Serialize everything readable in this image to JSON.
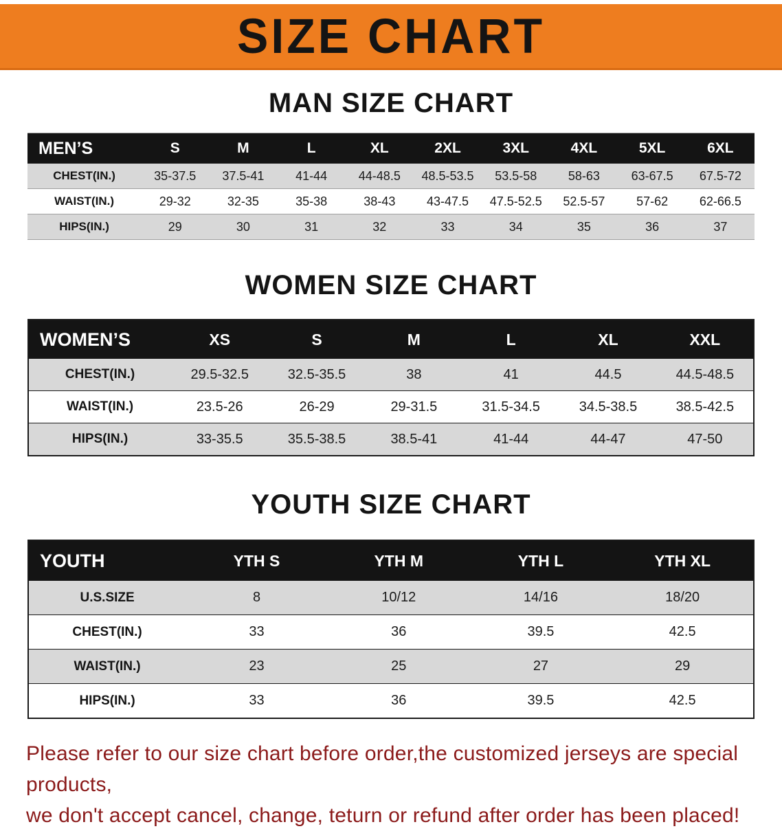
{
  "banner": {
    "title": "SIZE CHART"
  },
  "colors": {
    "banner_bg": "#ee7d1f",
    "header_bg": "#141414",
    "stripe": "#d8d8d8",
    "footer_text": "#8b1a1a"
  },
  "sections": [
    {
      "id": "men",
      "title": "MAN SIZE CHART",
      "header": [
        "MEN’S",
        "S",
        "M",
        "L",
        "XL",
        "2XL",
        "3XL",
        "4XL",
        "5XL",
        "6XL"
      ],
      "rows": [
        [
          "CHEST(IN.)",
          "35-37.5",
          "37.5-41",
          "41-44",
          "44-48.5",
          "48.5-53.5",
          "53.5-58",
          "58-63",
          "63-67.5",
          "67.5-72"
        ],
        [
          "WAIST(IN.)",
          "29-32",
          "32-35",
          "35-38",
          "38-43",
          "43-47.5",
          "47.5-52.5",
          "52.5-57",
          "57-62",
          "62-66.5"
        ],
        [
          "HIPS(IN.)",
          "29",
          "30",
          "31",
          "32",
          "33",
          "34",
          "35",
          "36",
          "37"
        ]
      ]
    },
    {
      "id": "women",
      "title": "WOMEN SIZE CHART",
      "header": [
        "WOMEN’S",
        "XS",
        "S",
        "M",
        "L",
        "XL",
        "XXL"
      ],
      "rows": [
        [
          "CHEST(IN.)",
          "29.5-32.5",
          "32.5-35.5",
          "38",
          "41",
          "44.5",
          "44.5-48.5"
        ],
        [
          "WAIST(IN.)",
          "23.5-26",
          "26-29",
          "29-31.5",
          "31.5-34.5",
          "34.5-38.5",
          "38.5-42.5"
        ],
        [
          "HIPS(IN.)",
          "33-35.5",
          "35.5-38.5",
          "38.5-41",
          "41-44",
          "44-47",
          "47-50"
        ]
      ]
    },
    {
      "id": "youth",
      "title": "YOUTH SIZE CHART",
      "header": [
        "YOUTH",
        "YTH S",
        "YTH M",
        "YTH L",
        "YTH XL"
      ],
      "rows": [
        [
          "U.S.SIZE",
          "8",
          "10/12",
          "14/16",
          "18/20"
        ],
        [
          "CHEST(IN.)",
          "33",
          "36",
          "39.5",
          "42.5"
        ],
        [
          "WAIST(IN.)",
          "23",
          "25",
          "27",
          "29"
        ],
        [
          "HIPS(IN.)",
          "33",
          "36",
          "39.5",
          "42.5"
        ]
      ]
    }
  ],
  "footer": {
    "line1": "Please refer to our size chart before order,the customized jerseys are special products,",
    "line2": "we don't accept cancel, change, teturn or refund after order has been placed!"
  }
}
